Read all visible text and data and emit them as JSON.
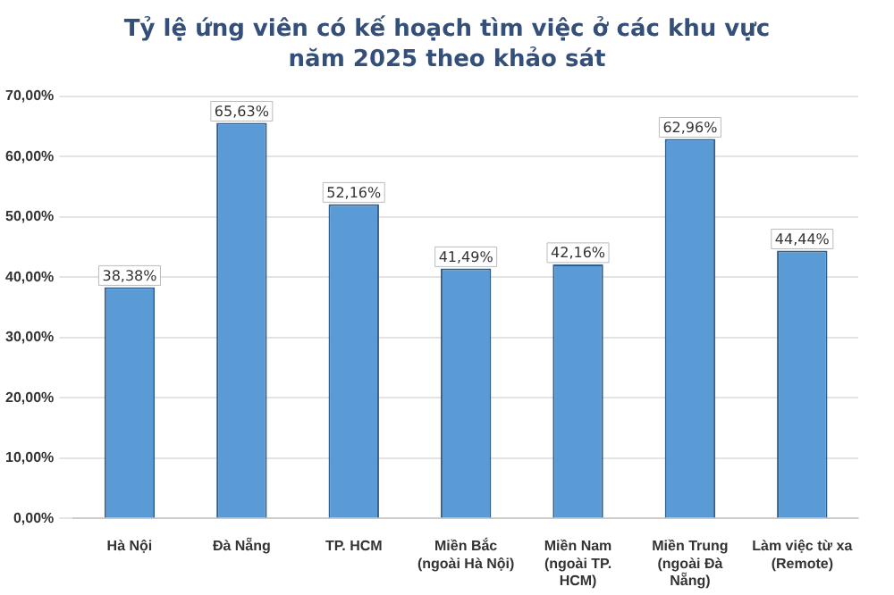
{
  "chart_data": {
    "type": "bar",
    "title": "Tỷ lệ ứng viên có kế hoạch tìm việc ở các khu vực năm 2025 theo khảo sát",
    "categories": [
      "Hà Nội",
      "Đà Nẵng",
      "TP. HCM",
      "Miền Bắc (ngoài Hà Nội)",
      "Miền Nam (ngoài TP. HCM)",
      "Miền Trung (ngoài Đà Nẵng)",
      "Làm việc từ xa (Remote)"
    ],
    "values": [
      38.38,
      65.63,
      52.16,
      41.49,
      42.16,
      62.96,
      44.44
    ],
    "value_labels": [
      "38,38%",
      "65,63%",
      "52,16%",
      "41,49%",
      "42,16%",
      "62,96%",
      "44,44%"
    ],
    "color": "#5b9bd5",
    "ylim": [
      0,
      70
    ],
    "yticks": [
      {
        "value": 0,
        "label": "0,00%"
      },
      {
        "value": 10,
        "label": "10,00%"
      },
      {
        "value": 20,
        "label": "20,00%"
      },
      {
        "value": 30,
        "label": "30,00%"
      },
      {
        "value": 40,
        "label": "40,00%"
      },
      {
        "value": 50,
        "label": "50,00%"
      },
      {
        "value": 60,
        "label": "60,00%"
      },
      {
        "value": 70,
        "label": "70,00%"
      }
    ],
    "grid": "y"
  }
}
